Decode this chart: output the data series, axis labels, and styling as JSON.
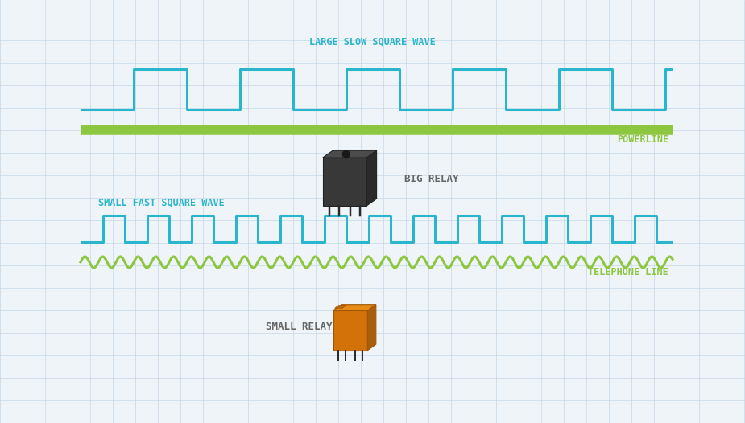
{
  "bg_color": "#eef4f8",
  "grid_color": "#c5d8e8",
  "sq_wave_color": "#29b5cc",
  "powerline_color": "#8dc63f",
  "telephone_color": "#8dc63f",
  "label_color_cyan": "#29b5cc",
  "label_color_green": "#8dc63f",
  "label_color_dark": "#666666",
  "title1": "LARGE SLOW SQUARE WAVE",
  "title2": "SMALL FAST SQUARE WAVE",
  "label_powerline": "POWERLINE",
  "label_telephone": "TELEPHONE LINE",
  "label_big_relay": "BIG RELAY",
  "label_small_relay": "SMALL RELAY",
  "sq_wave_lw": 2.2,
  "powerline_lw": 9,
  "telephone_lw": 2.2,
  "fig_w": 9.25,
  "fig_h": 5.26,
  "dpi": 100
}
